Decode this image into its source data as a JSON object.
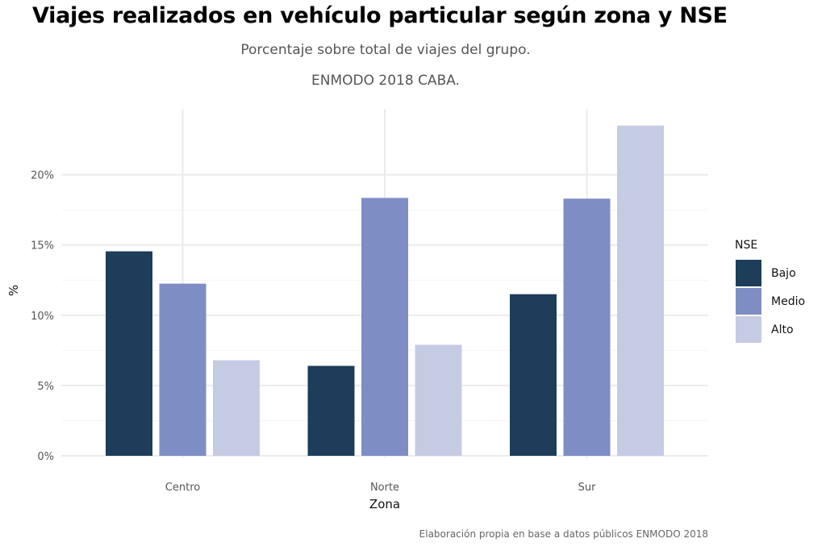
{
  "chart_data": {
    "type": "bar",
    "title": "Viajes realizados en vehículo particular según zona y NSE",
    "subtitle": [
      "Porcentaje sobre total de viajes del grupo.",
      "ENMODO 2018 CABA."
    ],
    "caption": "Elaboración propia en base a datos públicos ENMODO 2018",
    "xlabel": "Zona",
    "ylabel": "%",
    "categories": [
      "Centro",
      "Norte",
      "Sur"
    ],
    "series": [
      {
        "name": "Bajo",
        "color": "#1d3d5a",
        "values": [
          14.55,
          6.4,
          11.5
        ]
      },
      {
        "name": "Medio",
        "color": "#7e8ec5",
        "values": [
          12.25,
          18.35,
          18.3
        ]
      },
      {
        "name": "Alto",
        "color": "#c6cbe4",
        "values": [
          6.8,
          7.9,
          23.5
        ]
      }
    ],
    "yticks": [
      0,
      5,
      10,
      15,
      20
    ],
    "ytick_labels": [
      "0%",
      "5%",
      "10%",
      "15%",
      "20%"
    ],
    "ylim": [
      0,
      24.7
    ],
    "grid": true,
    "legend": {
      "title": "NSE",
      "position": "right"
    }
  }
}
